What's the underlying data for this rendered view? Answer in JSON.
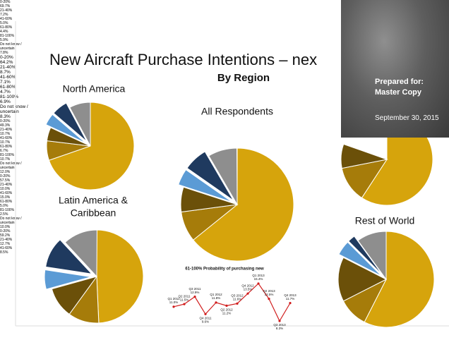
{
  "title": "New Aircraft Purchase Intentions – nex",
  "subtitle": "By Region",
  "prepared_box": {
    "label": "Prepared for:",
    "name": "Master Copy",
    "date": "September 30, 2015"
  },
  "chart_data": [
    {
      "type": "pie",
      "title": "North America",
      "categories": [
        "0-20%",
        "21-40%",
        "41-60%",
        "61-80%",
        "81-100%",
        "Do not know / uncertain"
      ],
      "values": [
        69.7,
        7.2,
        5.0,
        4.4,
        5.9,
        7.8
      ],
      "value_labels": [
        "69.7%",
        "7.2%",
        "5.0%",
        "4.4%",
        "5.9%",
        "7.8%"
      ],
      "colors": [
        "#d6a40c",
        "#a67c0a",
        "#6b5009",
        "#5b9bd5",
        "#1f3a5f",
        "#8e8e8e"
      ]
    },
    {
      "type": "pie",
      "title": "All Respondents",
      "categories": [
        "0-20%",
        "21-40%",
        "41-60%",
        "61-80%",
        "81-100%",
        "Do not know / uncertain"
      ],
      "values": [
        64.2,
        8.7,
        7.1,
        4.7,
        6.9,
        8.3
      ],
      "value_labels": [
        "64.2%",
        "8.7%",
        "7.1%",
        "4.7%",
        "6.9%",
        "8.3%"
      ],
      "colors": [
        "#d6a40c",
        "#a67c0a",
        "#6b5009",
        "#5b9bd5",
        "#1f3a5f",
        "#8e8e8e"
      ]
    },
    {
      "type": "pie",
      "title": "Latin America & Caribbean",
      "categories": [
        "0-20%",
        "21-40%",
        "41-60%",
        "61-80%",
        "81-100%",
        "Do not know / uncertain"
      ],
      "values": [
        49.3,
        10.7,
        10.7,
        6.7,
        10.7,
        12.0
      ],
      "value_labels": [
        "49.3%",
        "10.7%",
        "10.7%",
        "6.7%",
        "10.7%",
        "12.0%"
      ],
      "colors": [
        "#d6a40c",
        "#a67c0a",
        "#6b5009",
        "#5b9bd5",
        "#1f3a5f",
        "#8e8e8e"
      ]
    },
    {
      "type": "pie",
      "title": "Rest of World",
      "categories": [
        "0-20%",
        "21-40%",
        "41-60%",
        "61-80%",
        "81-100%",
        "Do not know / uncertain"
      ],
      "values": [
        57.5,
        10.0,
        15.0,
        5.0,
        2.5,
        10.0
      ],
      "value_labels": [
        "57.5%",
        "10.0%",
        "15.0%",
        "5.0%",
        "2.5%",
        "10.0%"
      ],
      "colors": [
        "#d6a40c",
        "#a67c0a",
        "#6b5009",
        "#5b9bd5",
        "#1f3a5f",
        "#8e8e8e"
      ]
    },
    {
      "type": "pie",
      "categories": [
        "0-20%",
        "21-40%",
        "41-60%"
      ],
      "values": [
        59.2,
        12.7,
        8.5
      ],
      "value_labels": [
        "59.2%",
        "12.7%",
        "8.5%"
      ],
      "colors": [
        "#d6a40c",
        "#a67c0a",
        "#6b5009"
      ]
    },
    {
      "type": "line",
      "title": "61-100% Probability of purchasing new",
      "categories": [
        "Q1 2011",
        "Q2 2011",
        "Q3 2011",
        "Q4 2011",
        "Q1 2012",
        "Q2 2012",
        "Q3 2012",
        "Q4 2012",
        "Q1 2013",
        "Q2 2013",
        "Q3 2013",
        "Q4 2013"
      ],
      "values": [
        11.0,
        11.5,
        12.9,
        9.6,
        11.8,
        11.2,
        11.6,
        13.5,
        15.4,
        12.5,
        8.3,
        11.7
      ],
      "value_labels": [
        "11.0%",
        "11.5%",
        "12.9%",
        "9.6%",
        "11.8%",
        "11.2%",
        "11.6%",
        "13.5%",
        "15.4%",
        "12.5%",
        "8.3%",
        "11.7%"
      ],
      "color": "#d01c1c"
    }
  ]
}
